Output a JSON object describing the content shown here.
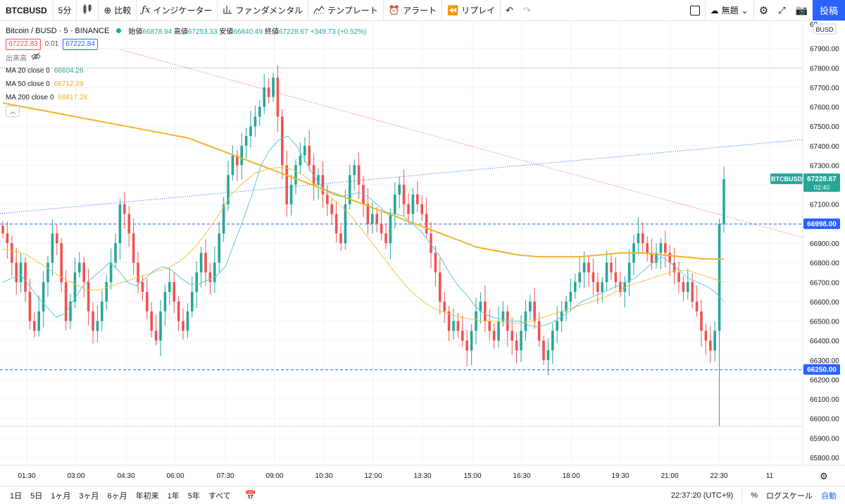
{
  "toolbar": {
    "symbol": "BTCBUSD",
    "interval": "5分",
    "compare": "比較",
    "indicators": "インジケーター",
    "fundamentals": "ファンダメンタル",
    "templates": "テンプレート",
    "alert": "アラート",
    "replay": "リプレイ",
    "layout_name": "無題",
    "post": "投稿"
  },
  "legend": {
    "title": "Bitcoin / BUSD · 5 · BINANCE",
    "open_label": "始値",
    "open": "66878.94",
    "high_label": "高値",
    "high": "67253.33",
    "low_label": "安値",
    "low": "66840.49",
    "close_label": "終値",
    "close": "67228.67",
    "change": "+349.73 (+0.52%)",
    "bid": "67222.83",
    "spread": "0.01",
    "ask": "67222.84",
    "volume_label": "出来高",
    "ma20_label": "MA 20 close 0",
    "ma20_value": "66604.26",
    "ma50_label": "MA 50 close 0",
    "ma50_value": "66712.29",
    "ma200_label": "MA 200 close 0",
    "ma200_value": "66817.28"
  },
  "colors": {
    "up": "#26a69a",
    "down": "#ef5350",
    "ma20": "#5bc8d8",
    "ma50": "#f5c242",
    "ma200": "#f0b429",
    "hline": "#2962ff"
  },
  "price_scale_label": "BUSD",
  "current_tag": {
    "symbol": "BTCBUSD",
    "price": "67228.67",
    "countdown": "02:40"
  },
  "hline_labels": [
    "66998.00",
    "66250.00"
  ],
  "bottom": {
    "ranges": [
      "1日",
      "5日",
      "1ヶ月",
      "3ヶ月",
      "6ヶ月",
      "年初来",
      "1年",
      "5年",
      "すべて"
    ],
    "clock": "22:37:20 (UTC+9)",
    "percent": "%",
    "log": "ログスケール",
    "auto": "自動"
  },
  "chart_data": {
    "type": "candlestick",
    "title": "Bitcoin / BUSD · 5 · BINANCE",
    "ylim": [
      65760,
      68040
    ],
    "y_ticks": [
      65800,
      65900,
      66000,
      66100,
      66200,
      66300,
      66400,
      66500,
      66600,
      66700,
      66800,
      66900,
      67000,
      67100,
      67200,
      67300,
      67400,
      67500,
      67600,
      67700,
      67800,
      67900
    ],
    "y_top_partial": "68",
    "x_ticks": [
      "01:30",
      "03:00",
      "04:30",
      "06:00",
      "07:30",
      "09:00",
      "10:30",
      "12:00",
      "13:30",
      "15:00",
      "16:30",
      "18:00",
      "19:30",
      "21:00",
      "22:30",
      "11"
    ],
    "horizontal_lines": [
      66998,
      66250
    ],
    "dotted_levels": [
      67800,
      65960
    ],
    "candles_close": [
      66950,
      66900,
      66800,
      66700,
      66800,
      66650,
      66500,
      66450,
      66550,
      66700,
      66800,
      66950,
      66900,
      66700,
      66500,
      66600,
      66750,
      66800,
      66700,
      66550,
      66450,
      66500,
      66600,
      66700,
      66800,
      66900,
      67100,
      67050,
      66950,
      66800,
      66700,
      66650,
      66550,
      66450,
      66400,
      66550,
      66650,
      66700,
      66600,
      66500,
      66450,
      66550,
      66650,
      66750,
      66850,
      66750,
      66700,
      66800,
      66950,
      67100,
      67250,
      67350,
      67300,
      67400,
      67450,
      67500,
      67550,
      67600,
      67700,
      67650,
      67750,
      67550,
      67300,
      67100,
      67200,
      67300,
      67350,
      67400,
      67300,
      67200,
      67250,
      67150,
      67100,
      67050,
      66950,
      66900,
      67100,
      67250,
      67300,
      67200,
      67100,
      67000,
      67050,
      67000,
      66950,
      66900,
      67050,
      67150,
      67200,
      67100,
      67050,
      67150,
      67100,
      67050,
      66950,
      66850,
      66750,
      66600,
      66550,
      66450,
      66500,
      66450,
      66400,
      66350,
      66450,
      66550,
      66600,
      66500,
      66450,
      66400,
      66500,
      66550,
      66450,
      66400,
      66350,
      66450,
      66550,
      66600,
      66500,
      66400,
      66300,
      66350,
      66450,
      66500,
      66550,
      66600,
      66650,
      66700,
      66750,
      66800,
      66750,
      66700,
      66650,
      66700,
      66800,
      66750,
      66700,
      66650,
      66700,
      66800,
      66900,
      66950,
      66900,
      66850,
      66800,
      66850,
      66900,
      66850,
      66800,
      66750,
      66700,
      66650,
      66700,
      66600,
      66550,
      66450,
      66400,
      66350,
      66450,
      66998,
      67228.67
    ],
    "ma20": [
      66700,
      66720,
      66740,
      66680,
      66620,
      66570,
      66520,
      66540,
      66610,
      66680,
      66720,
      66760,
      66800,
      66760,
      66700,
      66680,
      66720,
      66760,
      66780,
      66760,
      66720,
      66690,
      66690,
      66710,
      66730,
      66780,
      66900,
      67020,
      67150,
      67300,
      67380,
      67430,
      67450,
      67400,
      67320,
      67240,
      67180,
      67150,
      67140,
      67150,
      67160,
      67140,
      67100,
      67060,
      67050,
      67040,
      67000,
      66960,
      66900,
      66840,
      66760,
      66690,
      66640,
      66580,
      66540,
      66520,
      66510,
      66500,
      66500,
      66480,
      66470,
      66480,
      66500,
      66530,
      66560,
      66600,
      66620,
      66640,
      66660,
      66680,
      66700,
      66720,
      66760,
      66800,
      66830,
      66800,
      66760,
      66720,
      66700,
      66680,
      66650,
      66600
    ],
    "ma50": [
      66870,
      66860,
      66840,
      66800,
      66760,
      66720,
      66690,
      66660,
      66660,
      66680,
      66700,
      66720,
      66740,
      66760,
      66780,
      66820,
      66880,
      66960,
      67050,
      67150,
      67210,
      67260,
      67280,
      67290,
      67280,
      67250,
      67200,
      67150,
      67100,
      67040,
      66960,
      66880,
      66800,
      66720,
      66650,
      66600,
      66560,
      66540,
      66520,
      66510,
      66500,
      66500,
      66490,
      66490,
      66500,
      66520,
      66540,
      66560,
      66580,
      66600,
      66620,
      66650,
      66680,
      66700,
      66720,
      66740,
      66760,
      66760,
      66740,
      66720,
      66700
    ],
    "ma200": [
      67620,
      67600,
      67580,
      67560,
      67540,
      67520,
      67500,
      67480,
      67460,
      67440,
      67400,
      67360,
      67320,
      67280,
      67240,
      67200,
      67160,
      67120,
      67080,
      67040,
      67000,
      66960,
      66920,
      66880,
      66860,
      66840,
      66830,
      66830,
      66830,
      66840,
      66850,
      66850,
      66840,
      66830,
      66820,
      66817
    ]
  }
}
